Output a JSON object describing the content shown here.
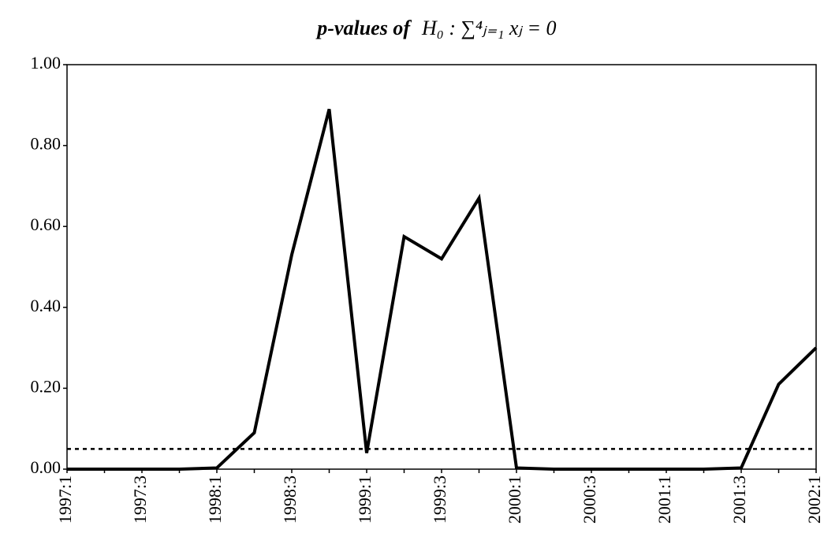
{
  "chart_data": {
    "type": "line",
    "title": "p-values of",
    "title_formula": "H₀ : ∑⁴ⱼ₌₁ xⱼ = 0",
    "categories": [
      "1997:1",
      null,
      "1997:3",
      null,
      "1998:1",
      null,
      "1998:3",
      null,
      "1999:1",
      null,
      "1999:3",
      null,
      "2000:1",
      null,
      "2000:3",
      null,
      "2001:1",
      null,
      "2001:3",
      null,
      "2002:1"
    ],
    "series": [
      {
        "name": "p-value",
        "color": "#000000",
        "values": [
          0,
          0,
          0,
          0,
          0.003,
          0.09,
          0.53,
          0.89,
          0.04,
          0.575,
          0.52,
          0.67,
          0.003,
          0,
          0,
          0,
          0,
          0,
          0.003,
          0.21,
          0.3
        ]
      }
    ],
    "reference_line": 0.05,
    "ylim": [
      0,
      1
    ],
    "yticks": [
      {
        "value": 0,
        "label": "0.00"
      },
      {
        "value": 0.2,
        "label": "0.20"
      },
      {
        "value": 0.4,
        "label": "0.40"
      },
      {
        "value": 0.6,
        "label": "0.60"
      },
      {
        "value": 0.8,
        "label": "0.80"
      },
      {
        "value": 1,
        "label": "1.00"
      }
    ],
    "grid": false
  }
}
